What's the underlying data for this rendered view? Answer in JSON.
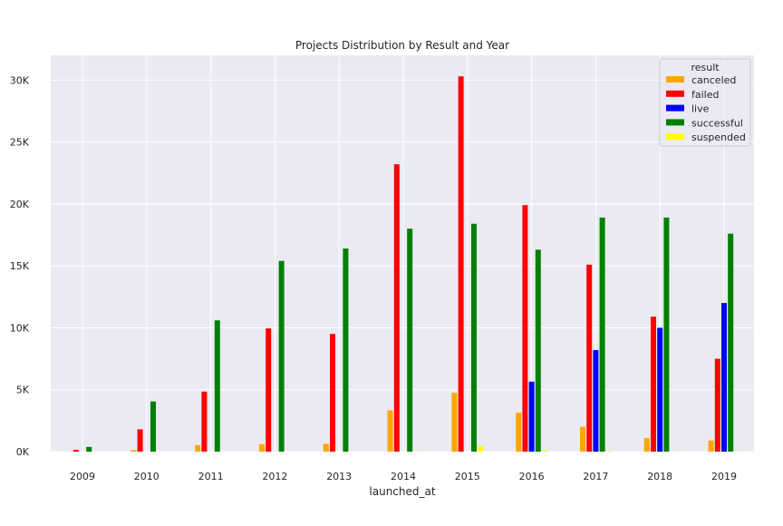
{
  "chart_data": {
    "type": "bar",
    "title": "Projects Distribution by Result and Year",
    "xlabel": "launched_at",
    "ylabel": "",
    "ylim": [
      0,
      32000
    ],
    "yticks": [
      0,
      5000,
      10000,
      15000,
      20000,
      25000,
      30000
    ],
    "ytick_labels": [
      "0K",
      "5K",
      "10K",
      "15K",
      "20K",
      "25K",
      "30K"
    ],
    "grid": true,
    "legend": {
      "title": "result",
      "placement": "top-right"
    },
    "categories": [
      "2009",
      "2010",
      "2011",
      "2012",
      "2013",
      "2014",
      "2015",
      "2016",
      "2017",
      "2018",
      "2019"
    ],
    "series": [
      {
        "name": "canceled",
        "color": "#ffa500",
        "values": [
          10,
          130,
          530,
          600,
          630,
          3330,
          4750,
          3150,
          2000,
          1100,
          900
        ]
      },
      {
        "name": "failed",
        "color": "#ff0000",
        "values": [
          150,
          1800,
          4850,
          9950,
          9500,
          23200,
          30300,
          19900,
          15100,
          10900,
          7500
        ]
      },
      {
        "name": "live",
        "color": "#0000ff",
        "values": [
          0,
          0,
          0,
          0,
          0,
          0,
          0,
          5650,
          8200,
          10000,
          12000
        ]
      },
      {
        "name": "successful",
        "color": "#008000",
        "values": [
          380,
          4050,
          10600,
          15400,
          16400,
          18000,
          18400,
          16300,
          18900,
          18900,
          17600
        ]
      },
      {
        "name": "suspended",
        "color": "#ffff00",
        "values": [
          0,
          0,
          0,
          0,
          0,
          20,
          450,
          100,
          50,
          20,
          20
        ]
      }
    ]
  }
}
